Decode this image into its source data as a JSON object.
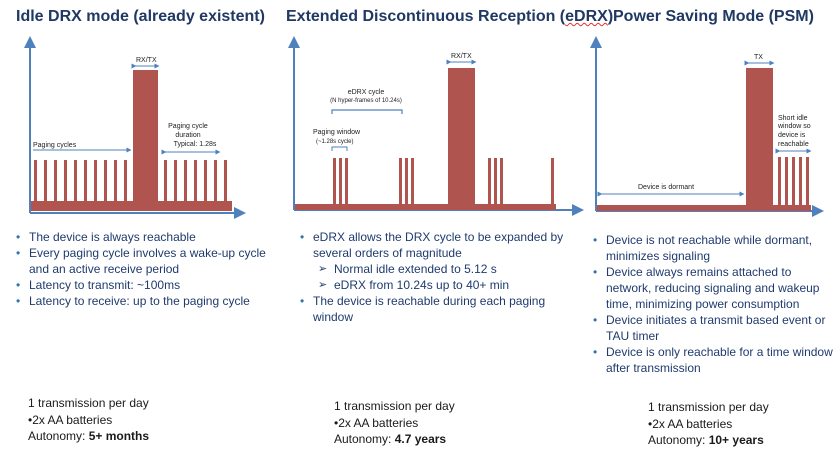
{
  "columns": [
    {
      "title": "Idle DRX mode (already existent)",
      "labels": {
        "rxtx": "RX/TX",
        "paging_cycles": "Paging cycles",
        "pc_duration_1": "Paging cycle",
        "pc_duration_2": "duration",
        "pc_duration_3": "Typical: 1.28s"
      },
      "bullets": [
        "The device is always reachable",
        "Every paging cycle involves a wake-up cycle  and an active receive period",
        "Latency to transmit: ~100ms",
        "Latency to receive: up to the paging cycle"
      ],
      "footer": {
        "line1": "1 transmission per day",
        "line2": "•2x AA batteries",
        "autonomy_label": "Autonomy: ",
        "autonomy_value": "5+ months"
      }
    },
    {
      "title_prefix": "Extended Discontinuous Reception (",
      "title_spell": "eDRX",
      "title_suffix": ")",
      "labels": {
        "rxtx": "RX/TX",
        "edrx_cycle_1": "eDRX cycle",
        "edrx_cycle_2": "(N hyper-frames of 10.24s)",
        "paging_window_1": "Paging window",
        "paging_window_2": "(~1.28s cycle)"
      },
      "bullets": [
        "eDRX allows the DRX cycle to be expanded by several orders of magnitude",
        "Normal idle extended to 5.12 s",
        " eDRX from 10.24s up to 40+ min",
        "The device is reachable during each paging window"
      ],
      "footer": {
        "line1": "1 transmission  per day",
        "line2": "•2x AA batteries",
        "autonomy_label": "Autonomy: ",
        "autonomy_value": "4.7 years"
      }
    },
    {
      "title": "Power Saving Mode (PSM)",
      "labels": {
        "tx": "TX",
        "dormant": "Device is dormant",
        "short_idle_1": "Short idle",
        "short_idle_2": "window so",
        "short_idle_3": "device is",
        "short_idle_4": "reachable"
      },
      "bullets": [
        "Device is not reachable while dormant, minimizes signaling",
        "Device always remains attached to network, reducing signaling and wakeup time, minimizing power consumption",
        "Device initiates a transmit based event or TAU timer",
        "Device is only reachable for a time window after transmission"
      ],
      "footer": {
        "line1": "1 transmission per day",
        "line2": "•2x AA batteries",
        "autonomy_label": "Autonomy: ",
        "autonomy_value": "10+ years"
      }
    }
  ],
  "colors": {
    "title": "#1f3864",
    "axis": "#4f81bd",
    "bar": "#b05450",
    "bullet_text": "#1f3b6e"
  }
}
